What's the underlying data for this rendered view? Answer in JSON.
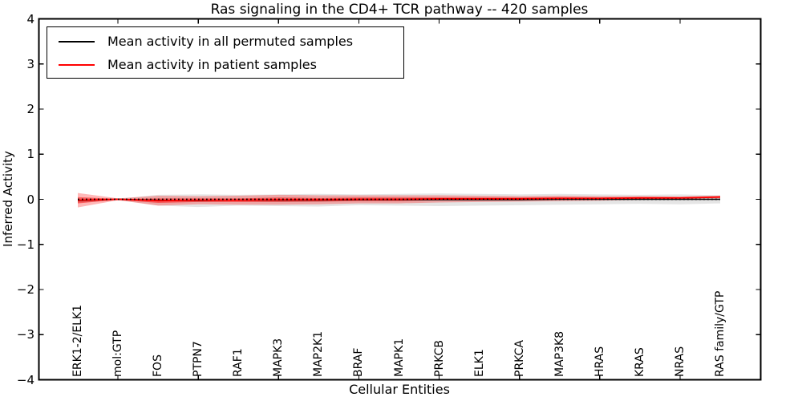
{
  "title": "Ras signaling in the CD4+ TCR pathway -- 420 samples",
  "axes": {
    "xlabel": "Cellular Entities",
    "ylabel": "Inferred Activity",
    "y_tick_labels": [
      "4",
      "3",
      "2",
      "1",
      "0",
      "−1",
      "−2",
      "−3",
      "−4"
    ],
    "y_tick_values": [
      4,
      3,
      2,
      1,
      0,
      -1,
      -2,
      -3,
      -4
    ],
    "ylim": [
      -4,
      4
    ]
  },
  "legend": {
    "entries": [
      {
        "label": "Mean activity in all permuted samples",
        "color": "#000000"
      },
      {
        "label": "Mean activity in patient samples",
        "color": "#ff0000"
      }
    ]
  },
  "colors": {
    "permuted_line": "#000000",
    "patient_line": "#ff0000",
    "permuted_band": "#999999",
    "patient_band": "#ff0000",
    "frame": "#000000",
    "background": "#ffffff"
  },
  "chart_data": {
    "type": "line",
    "title": "Ras signaling in the CD4+ TCR pathway -- 420 samples",
    "xlabel": "Cellular Entities",
    "ylabel": "Inferred Activity",
    "ylim": [
      -4,
      4
    ],
    "grid": false,
    "legend_position": "upper left",
    "categories": [
      "ERK1-2/ELK1",
      "mol:GTP",
      "FOS",
      "PTPN7",
      "RAF1",
      "MAPK3",
      "MAP2K1",
      "BRAF",
      "MAPK1",
      "PRKCB",
      "ELK1",
      "PRKCA",
      "MAP3K8",
      "HRAS",
      "KRAS",
      "NRAS",
      "RAS family/GTP"
    ],
    "major_x_tick_indices": [
      1,
      3,
      5,
      7,
      9,
      11,
      13,
      15
    ],
    "series": [
      {
        "name": "Mean activity in all permuted samples",
        "color": "#000000",
        "values": [
          -0.03,
          0.0,
          -0.02,
          -0.03,
          -0.02,
          -0.02,
          -0.02,
          -0.01,
          -0.01,
          -0.01,
          -0.01,
          -0.01,
          0.0,
          0.0,
          0.0,
          0.0,
          0.0
        ],
        "std": [
          0.05,
          0.01,
          0.12,
          0.14,
          0.12,
          0.13,
          0.14,
          0.12,
          0.13,
          0.14,
          0.13,
          0.12,
          0.12,
          0.11,
          0.1,
          0.11,
          0.09
        ]
      },
      {
        "name": "Mean activity in patient samples",
        "color": "#ff0000",
        "values": [
          -0.02,
          0.0,
          -0.03,
          -0.02,
          -0.02,
          -0.01,
          -0.01,
          0.0,
          0.0,
          0.01,
          0.01,
          0.01,
          0.02,
          0.02,
          0.03,
          0.03,
          0.05
        ],
        "std_outer": [
          0.16,
          0.02,
          0.11,
          0.09,
          0.1,
          0.11,
          0.1,
          0.09,
          0.09,
          0.08,
          0.07,
          0.06,
          0.06,
          0.05,
          0.04,
          0.03,
          0.03
        ],
        "std_inner": [
          0.07,
          0.01,
          0.05,
          0.04,
          0.04,
          0.05,
          0.04,
          0.04,
          0.04,
          0.03,
          0.03,
          0.03,
          0.025,
          0.02,
          0.02,
          0.015,
          0.015
        ]
      }
    ],
    "zero_reference_line": {
      "value": 0,
      "style": "dotted",
      "color": "#000000"
    }
  }
}
